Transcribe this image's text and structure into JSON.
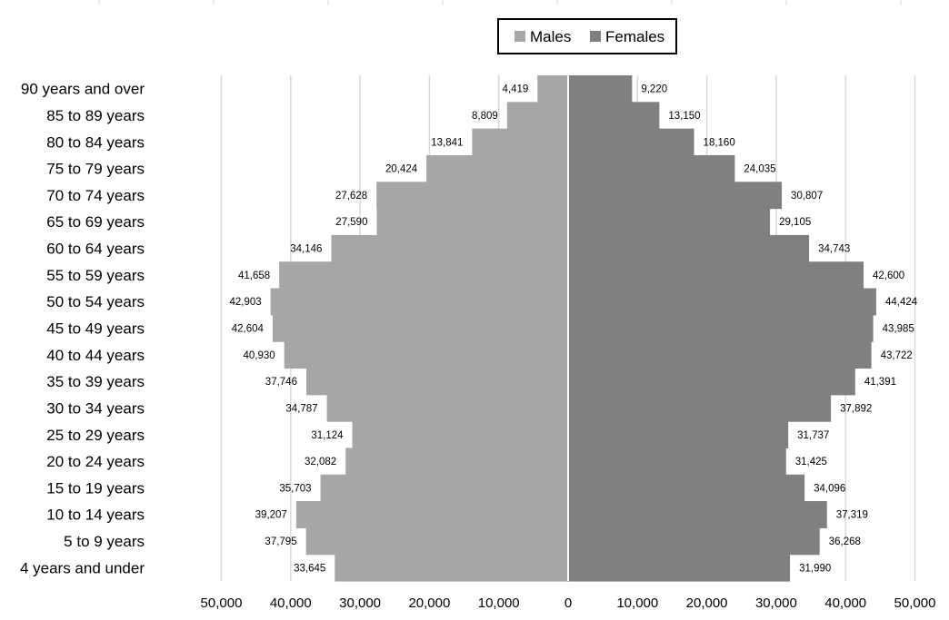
{
  "chart_data": {
    "type": "bar",
    "orientation": "horizontal",
    "subtype": "population-pyramid",
    "categories": [
      "90 years and over",
      "85 to 89 years",
      "80 to 84 years",
      "75 to 79 years",
      "70 to 74 years",
      "65 to 69 years",
      "60 to 64 years",
      "55 to 59 years",
      "50 to 54 years",
      "45 to 49 years",
      "40 to 44 years",
      "35 to 39 years",
      "30 to 34 years",
      "25 to 29 years",
      "20 to 24 years",
      "15 to 19 years",
      "10 to 14 years",
      "5 to 9 years",
      "4 years and under"
    ],
    "series": [
      {
        "name": "Males",
        "color": "#a6a6a6",
        "side": "left",
        "values": [
          4419,
          8809,
          13841,
          20424,
          27628,
          27590,
          34146,
          41658,
          42903,
          42604,
          40930,
          37746,
          34787,
          31124,
          32082,
          35703,
          39207,
          37795,
          33645
        ],
        "labels": [
          "4,419",
          "8,809",
          "13,841",
          "20,424",
          "27,628",
          "27,590",
          "34,146",
          "41,658",
          "42,903",
          "42,604",
          "40,930",
          "37,746",
          "34,787",
          "31,124",
          "32,082",
          "35,703",
          "39,207",
          "37,795",
          "33,645"
        ]
      },
      {
        "name": "Females",
        "color": "#808080",
        "side": "right",
        "values": [
          9220,
          13150,
          18160,
          24035,
          30807,
          29105,
          34743,
          42600,
          44424,
          43985,
          43722,
          41391,
          37892,
          31737,
          31425,
          34096,
          37319,
          36268,
          31990
        ],
        "labels": [
          "9,220",
          "13,150",
          "18,160",
          "24,035",
          "30,807",
          "29,105",
          "34,743",
          "42,600",
          "44,424",
          "43,985",
          "43,722",
          "41,391",
          "37,892",
          "31,737",
          "31,425",
          "34,096",
          "37,319",
          "36,268",
          "31,990"
        ]
      }
    ],
    "xlim": [
      -50000,
      50000
    ],
    "x_ticks": [
      -50000,
      -40000,
      -30000,
      -20000,
      -10000,
      0,
      10000,
      20000,
      30000,
      40000,
      50000
    ],
    "x_tick_labels": [
      "50,000",
      "40,000",
      "30,000",
      "20,000",
      "10,000",
      "0",
      "10,000",
      "20,000",
      "30,000",
      "40,000",
      "50,000"
    ],
    "title": "",
    "xlabel": "",
    "ylabel": "",
    "grid": "vertical",
    "legend_position": "top-right",
    "background": "#ffffff",
    "gridline_color": "#d9d9d9"
  }
}
